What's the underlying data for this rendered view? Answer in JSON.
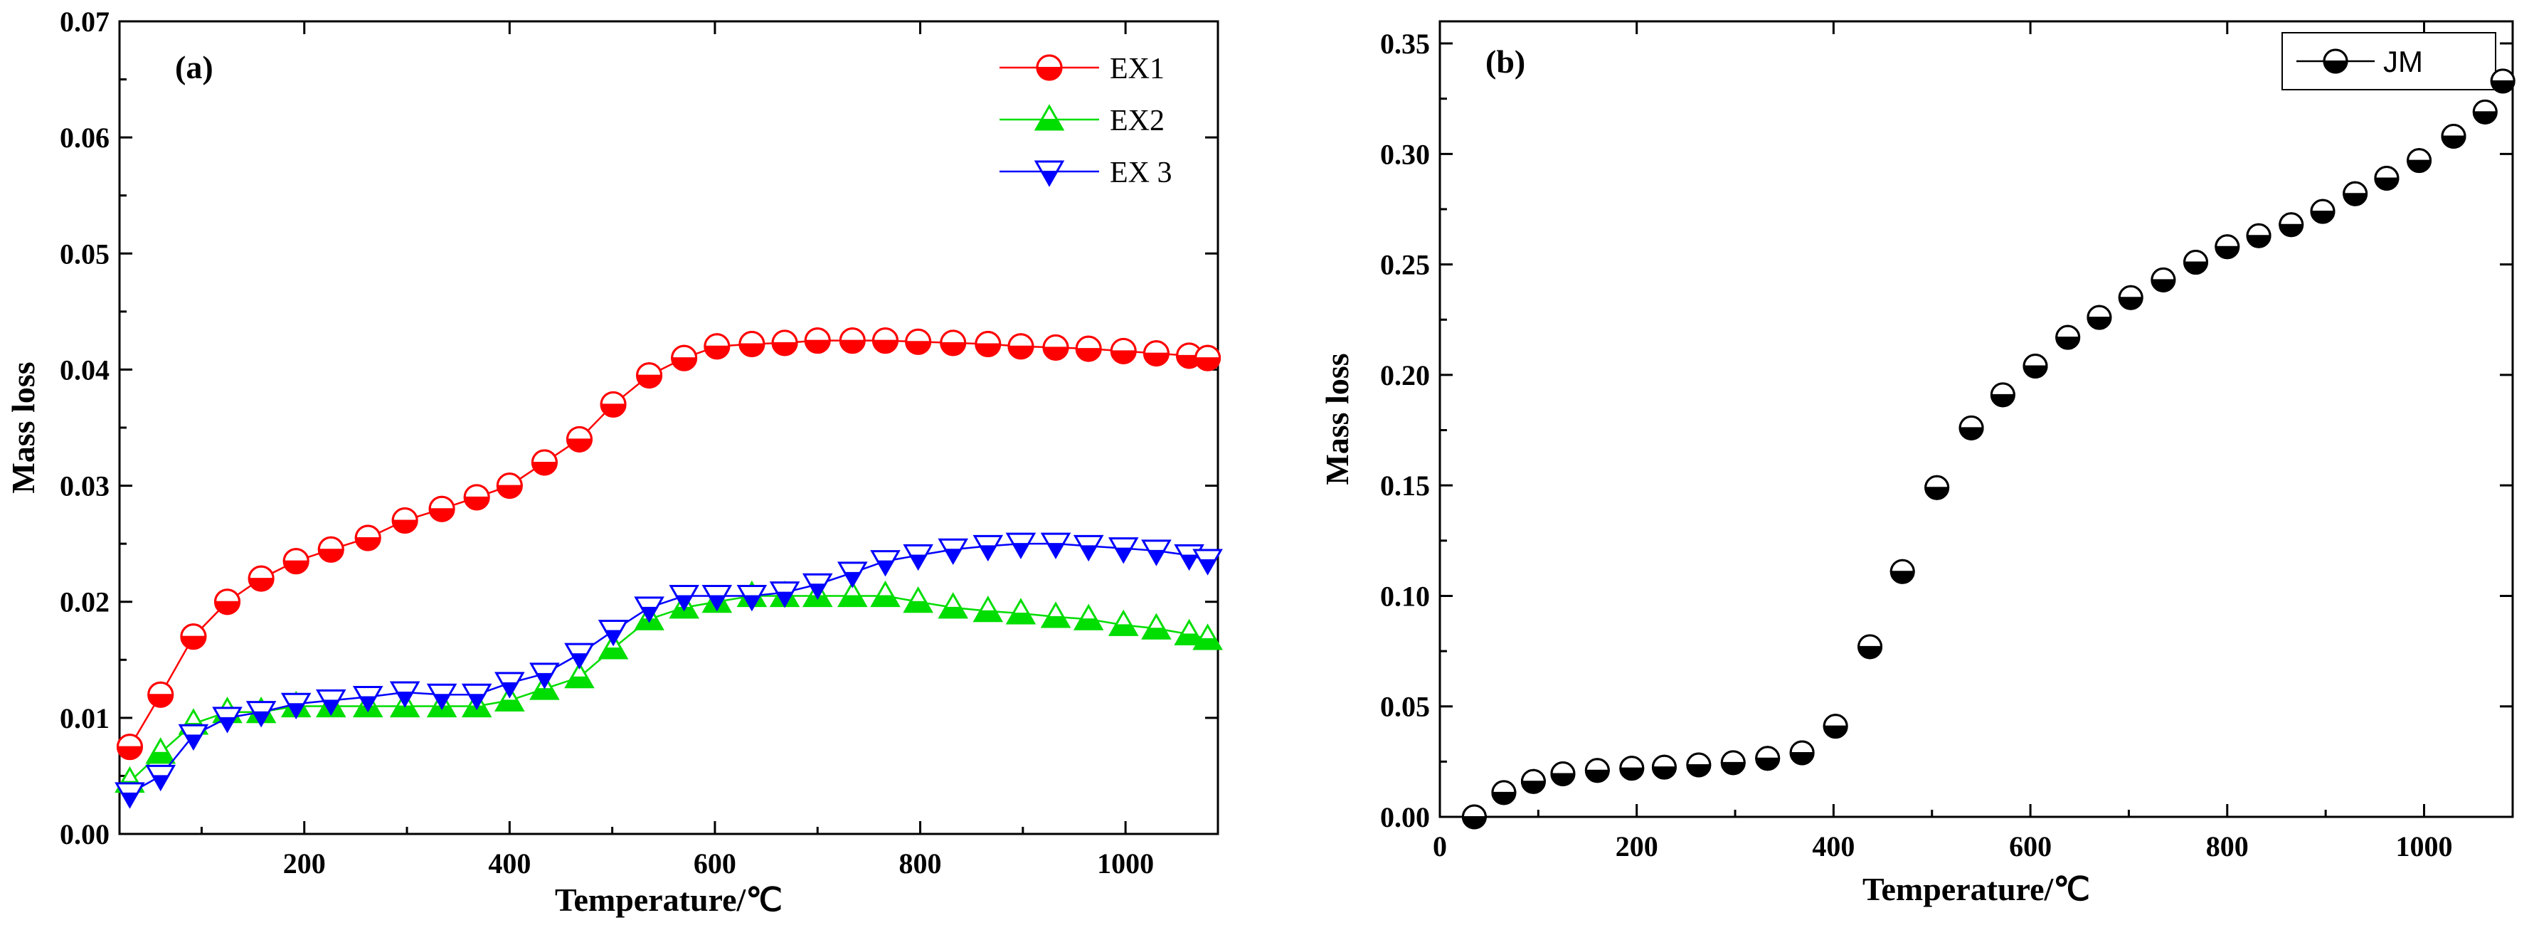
{
  "chart_data": [
    {
      "type": "line",
      "panel_label": "(a)",
      "xlabel": "Temperature/℃",
      "ylabel": "Mass loss",
      "xlim": [
        20,
        1090
      ],
      "ylim": [
        0.0,
        0.07
      ],
      "xticks": [
        200,
        400,
        600,
        800,
        1000
      ],
      "yticks": [
        0.0,
        0.01,
        0.02,
        0.03,
        0.04,
        0.05,
        0.06,
        0.07
      ],
      "xtick_labels": [
        "200",
        "400",
        "600",
        "800",
        "1000"
      ],
      "ytick_labels": [
        "0.00",
        "0.01",
        "0.02",
        "0.03",
        "0.04",
        "0.05",
        "0.06",
        "0.07"
      ],
      "legend_position": "top-right",
      "x": [
        30,
        60,
        92,
        125,
        158,
        192,
        226,
        262,
        298,
        334,
        368,
        400,
        434,
        468,
        501,
        536,
        570,
        602,
        636,
        668,
        700,
        734,
        766,
        798,
        832,
        866,
        898,
        932,
        964,
        998,
        1030,
        1062,
        1080
      ],
      "series": [
        {
          "name": "EX1",
          "color": "#ff0000",
          "marker": "circle-half",
          "values": [
            0.0075,
            0.012,
            0.017,
            0.02,
            0.022,
            0.0235,
            0.0245,
            0.0255,
            0.027,
            0.028,
            0.029,
            0.03,
            0.032,
            0.034,
            0.037,
            0.0395,
            0.041,
            0.042,
            0.0422,
            0.0423,
            0.0425,
            0.0425,
            0.0425,
            0.0424,
            0.0423,
            0.0422,
            0.042,
            0.0419,
            0.0418,
            0.0416,
            0.0414,
            0.0412,
            0.041
          ]
        },
        {
          "name": "EX2",
          "color": "#00dd00",
          "marker": "triangle-up",
          "values": [
            0.0045,
            0.007,
            0.0095,
            0.0105,
            0.0105,
            0.011,
            0.011,
            0.011,
            0.011,
            0.011,
            0.011,
            0.0115,
            0.0125,
            0.0135,
            0.016,
            0.0185,
            0.0195,
            0.02,
            0.0205,
            0.0205,
            0.0205,
            0.0205,
            0.0205,
            0.02,
            0.0195,
            0.0192,
            0.019,
            0.0187,
            0.0185,
            0.018,
            0.0177,
            0.0172,
            0.0168
          ]
        },
        {
          "name": "EX 3",
          "color": "#0000ff",
          "marker": "triangle-down",
          "values": [
            0.0035,
            0.005,
            0.0085,
            0.01,
            0.0105,
            0.0112,
            0.0115,
            0.0118,
            0.0122,
            0.012,
            0.012,
            0.013,
            0.0138,
            0.0155,
            0.0175,
            0.0195,
            0.0205,
            0.0205,
            0.0205,
            0.0208,
            0.0215,
            0.0225,
            0.0235,
            0.024,
            0.0245,
            0.0248,
            0.025,
            0.025,
            0.0248,
            0.0246,
            0.0244,
            0.024,
            0.0236
          ]
        }
      ]
    },
    {
      "type": "scatter",
      "panel_label": "(b)",
      "xlabel": "Temperature/℃",
      "ylabel": "Mass loss",
      "xlim": [
        0,
        1090
      ],
      "ylim": [
        0.0,
        0.36
      ],
      "xticks": [
        0,
        200,
        400,
        600,
        800,
        1000
      ],
      "yticks": [
        0.0,
        0.05,
        0.1,
        0.15,
        0.2,
        0.25,
        0.3,
        0.35
      ],
      "xtick_labels": [
        "0",
        "200",
        "400",
        "600",
        "800",
        "1000"
      ],
      "ytick_labels": [
        "0.00",
        "0.05",
        "0.10",
        "0.15",
        "0.20",
        "0.25",
        "0.30",
        "0.35"
      ],
      "legend_position": "top-right",
      "x": [
        35,
        65,
        95,
        125,
        160,
        195,
        228,
        263,
        298,
        333,
        368,
        402,
        437,
        470,
        505,
        540,
        572,
        605,
        638,
        670,
        702,
        735,
        768,
        800,
        832,
        865,
        897,
        930,
        962,
        995,
        1030,
        1062,
        1080
      ],
      "series": [
        {
          "name": "JM",
          "color": "#000000",
          "marker": "circle-half",
          "values": [
            0.0,
            0.011,
            0.016,
            0.0195,
            0.021,
            0.022,
            0.0225,
            0.0235,
            0.0245,
            0.0265,
            0.029,
            0.041,
            0.077,
            0.111,
            0.149,
            0.176,
            0.191,
            0.204,
            0.217,
            0.226,
            0.235,
            0.243,
            0.251,
            0.258,
            0.263,
            0.268,
            0.274,
            0.282,
            0.289,
            0.297,
            0.308,
            0.319,
            0.333
          ]
        }
      ]
    }
  ]
}
